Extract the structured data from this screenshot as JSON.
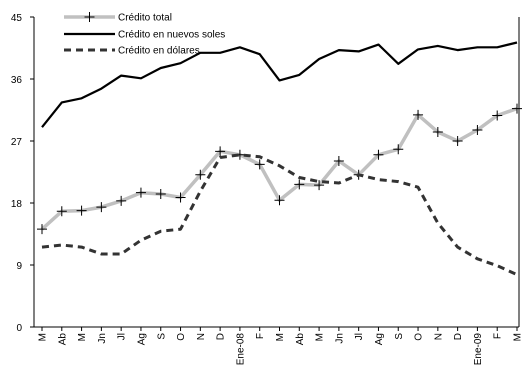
{
  "chart_data": {
    "type": "line",
    "categories": [
      "M",
      "Ab",
      "M",
      "Jn",
      "Jl",
      "Ag",
      "S",
      "O",
      "N",
      "D",
      "Ene-08",
      "F",
      "M",
      "Ab",
      "M",
      "Jn",
      "Jl",
      "Ag",
      "S",
      "O",
      "N",
      "D",
      "Ene-09",
      "F",
      "M"
    ],
    "ylim": [
      0,
      45
    ],
    "yticks": [
      "0",
      "9",
      "18",
      "27",
      "36",
      "45"
    ],
    "grid": false,
    "legend_position": "top-left",
    "series": [
      {
        "name": "Crédito total",
        "color": "#c0c0c0",
        "style": "thick-solid-with-plus-markers",
        "values": [
          14.2,
          16.8,
          16.9,
          17.4,
          18.3,
          19.5,
          19.3,
          18.8,
          22.1,
          25.5,
          25.0,
          23.6,
          18.4,
          20.7,
          20.6,
          24.1,
          22.1,
          25.0,
          25.8,
          30.8,
          28.3,
          27.0,
          28.6,
          30.7,
          31.7
        ]
      },
      {
        "name": "Crédito en nuevos soles",
        "color": "#000000",
        "style": "solid",
        "values": [
          29.0,
          32.6,
          33.2,
          34.6,
          36.5,
          36.1,
          37.6,
          38.3,
          39.8,
          39.8,
          40.6,
          39.6,
          35.8,
          36.6,
          38.9,
          40.2,
          40.0,
          41.0,
          38.2,
          40.3,
          40.8,
          40.2,
          40.6,
          40.6,
          41.3
        ]
      },
      {
        "name": "Crédito en dólares",
        "color": "#333333",
        "style": "dashed",
        "values": [
          11.6,
          11.9,
          11.6,
          10.6,
          10.6,
          12.6,
          13.9,
          14.2,
          19.7,
          24.6,
          25.0,
          24.7,
          23.4,
          21.7,
          21.1,
          20.9,
          22.1,
          21.4,
          21.1,
          20.3,
          15.1,
          11.6,
          9.9,
          8.9,
          7.6
        ]
      }
    ]
  }
}
